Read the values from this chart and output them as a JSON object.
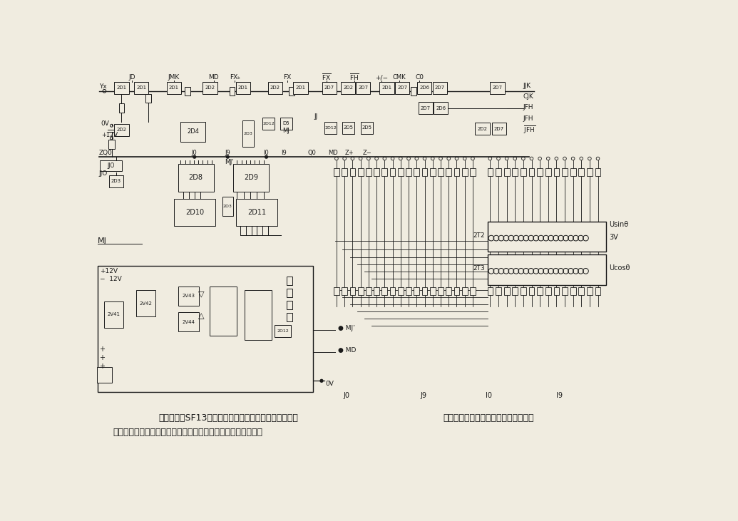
{
  "fig_width": 10.35,
  "fig_height": 7.31,
  "dpi": 100,
  "bg": "#f0ece0",
  "lc": "#1a1a1a",
  "caption1_left": "所示为SF13型数显电路图，图中所示为振荡器及脉",
  "caption1_right": "形成电路是数显电路的重要组成部分。",
  "caption2": "冲形成部分。以振荡器和稳幅电路组成的正弦波振荡器以及脉冲"
}
